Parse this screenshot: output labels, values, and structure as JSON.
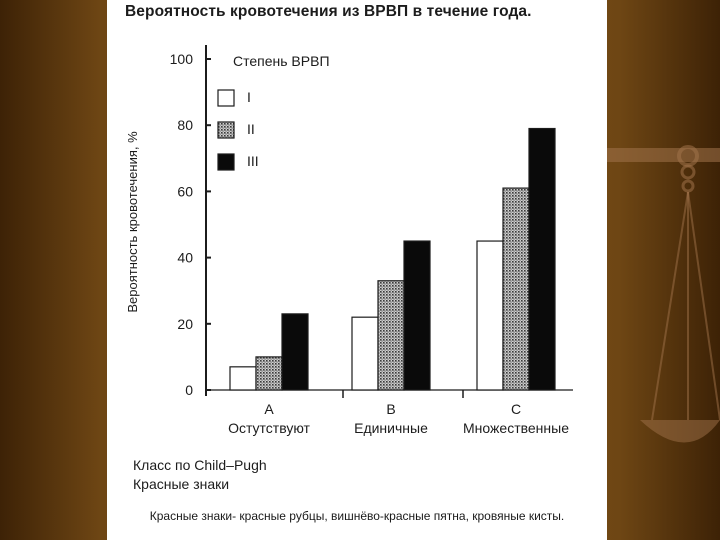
{
  "chart_data": {
    "type": "bar",
    "title": "Вероятность кровотечения из ВРВП в течение года.",
    "ylabel": "Вероятность кровотечения, %",
    "ylim": [
      0,
      100
    ],
    "yticks": [
      0,
      20,
      40,
      60,
      80,
      100
    ],
    "grid": false,
    "legend_title": "Степень ВРВП",
    "legend_position": "top-left",
    "categories": [
      {
        "letter": "A",
        "label": "Остутствуют"
      },
      {
        "letter": "B",
        "label": "Единичные"
      },
      {
        "letter": "C",
        "label": "Множественные"
      }
    ],
    "series": [
      {
        "name": "I",
        "values": [
          7,
          22,
          45
        ],
        "color": "#ffffff",
        "pattern": "none"
      },
      {
        "name": "II",
        "values": [
          10,
          33,
          61
        ],
        "color": "#8c8c8c",
        "pattern": "dotted"
      },
      {
        "name": "III",
        "values": [
          23,
          45,
          79
        ],
        "color": "#0a0a0a",
        "pattern": "none"
      }
    ],
    "xlabel_lines": [
      "Класс по Child–Pugh",
      "Красные знаки"
    ]
  },
  "footnote": "Красные знаки- красные рубцы, вишнёво-красные пятна, кровяные кисты."
}
